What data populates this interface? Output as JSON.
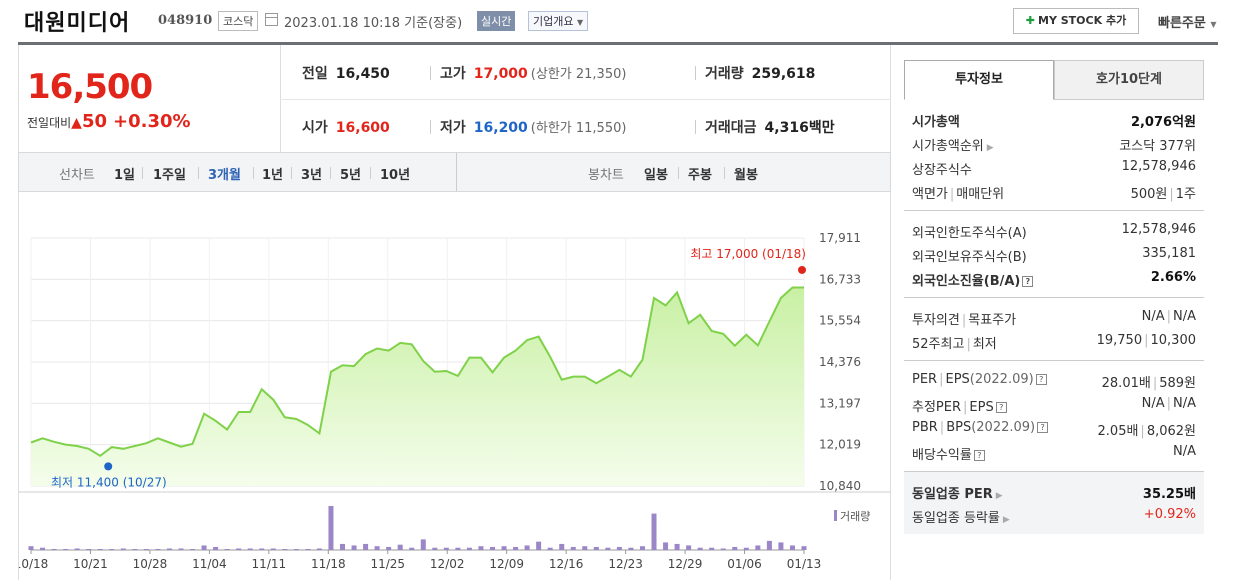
{
  "header": {
    "title": "대원미디어",
    "code": "048910",
    "market": "코스닥",
    "date": "2023.01.18 10:18 기준(장중)",
    "live_badge": "실시간",
    "company_info": "기업개요",
    "mystock": "MY STOCK 추가",
    "quick_order": "빠른주문"
  },
  "price": {
    "current": "16,500",
    "diff_label": "전일대비",
    "diff_value": "50",
    "diff_pct": "+0.30%",
    "prev_close_label": "전일",
    "prev_close": "16,450",
    "high_label": "고가",
    "high": "17,000",
    "upper_limit": "(상한가 21,350)",
    "volume_label": "거래량",
    "volume": "259,618",
    "open_label": "시가",
    "open": "16,600",
    "low_label": "저가",
    "low": "16,200",
    "lower_limit": "(하한가 11,550)",
    "amount_label": "거래대금",
    "amount": "4,316",
    "amount_unit": "백만"
  },
  "period_tabs": {
    "line_label": "선차트",
    "line_items": [
      "1일",
      "1주일",
      "3개월",
      "1년",
      "3년",
      "5년",
      "10년"
    ],
    "active": "3개월",
    "candle_label": "봉차트",
    "candle_items": [
      "일봉",
      "주봉",
      "월봉"
    ]
  },
  "chart_data": {
    "type": "area",
    "y_ticks": [
      "17,911",
      "16,733",
      "15,554",
      "14,376",
      "13,197",
      "12,019",
      "10,840"
    ],
    "ylim": [
      10840,
      17911
    ],
    "x_ticks": [
      "10/18",
      "10/21",
      "10/28",
      "11/04",
      "11/11",
      "11/18",
      "11/25",
      "12/02",
      "12/09",
      "12/16",
      "12/23",
      "12/29",
      "01/06",
      "01/13"
    ],
    "high_annotation": "최고 17,000 (01/18)",
    "low_annotation": "최저 11,400 (10/27)",
    "volume_legend": "거래량",
    "colors": {
      "line": "#7fd14a",
      "fill_top": "#c9f0a4",
      "volume": "#9b86c8",
      "high_dot": "#e1251b",
      "low_dot": "#1f65c8"
    },
    "prices": [
      12080,
      12200,
      12100,
      12020,
      11980,
      11900,
      11700,
      11950,
      11900,
      11980,
      12060,
      12200,
      12080,
      11960,
      12040,
      12900,
      12700,
      12450,
      12950,
      12950,
      13600,
      13300,
      12800,
      12750,
      12580,
      12340,
      14100,
      14280,
      14260,
      14600,
      14760,
      14700,
      14920,
      14880,
      14400,
      14100,
      14120,
      13980,
      14500,
      14500,
      14080,
      14500,
      14700,
      15000,
      15100,
      14520,
      13870,
      13960,
      13960,
      13770,
      13960,
      14150,
      13960,
      14440,
      16200,
      15990,
      16360,
      15480,
      15720,
      15260,
      15180,
      14840,
      15150,
      14850,
      15530,
      16200,
      16500,
      16500
    ],
    "volumes": [
      5,
      3,
      1,
      1,
      2,
      1,
      1,
      1,
      2,
      1,
      1,
      1,
      2,
      2,
      1,
      6,
      4,
      1,
      2,
      2,
      2,
      2,
      1,
      1,
      1,
      2,
      58,
      8,
      6,
      8,
      5,
      4,
      7,
      3,
      14,
      3,
      3,
      3,
      3,
      5,
      4,
      5,
      4,
      6,
      11,
      3,
      8,
      4,
      5,
      4,
      3,
      4,
      3,
      5,
      48,
      10,
      8,
      6,
      3,
      3,
      2,
      4,
      3,
      6,
      12,
      10,
      6,
      5
    ]
  },
  "side": {
    "tab_active": "투자정보",
    "tab_other": "호가10단계",
    "g1": [
      {
        "k": "시가총액",
        "v": "2,076억원"
      },
      {
        "k": "시가총액순위",
        "v": "코스닥 377위"
      },
      {
        "k": "상장주식수",
        "v": "12,578,946"
      },
      {
        "k1": "액면가",
        "k2": "매매단위",
        "v1": "500원",
        "v2": "1주"
      }
    ],
    "g2": [
      {
        "k": "외국인한도주식수(A)",
        "v": "12,578,946"
      },
      {
        "k": "외국인보유주식수(B)",
        "v": "335,181"
      },
      {
        "k": "외국인소진율(B/A)",
        "v": "2.66%"
      }
    ],
    "g3": [
      {
        "k1": "투자의견",
        "k2": "목표주가",
        "v1": "N/A",
        "v2": "N/A"
      },
      {
        "k1": "52주최고",
        "k2": "최저",
        "v1": "19,750",
        "v2": "10,300"
      }
    ],
    "g4": [
      {
        "k1": "PER",
        "k2": "EPS",
        "k3": "(2022.09)",
        "v1": "28.01배",
        "v2": "589원"
      },
      {
        "k1": "추정PER",
        "k2": "EPS",
        "v1": "N/A",
        "v2": "N/A"
      },
      {
        "k1": "PBR",
        "k2": "BPS",
        "k3": "(2022.09)",
        "v1": "2.05배",
        "v2": "8,062원"
      },
      {
        "k": "배당수익률",
        "v": "N/A"
      }
    ],
    "g5": [
      {
        "k": "동일업종 PER",
        "v": "35.25배"
      },
      {
        "k": "동일업종 등락률",
        "v": "+0.92%"
      }
    ]
  }
}
